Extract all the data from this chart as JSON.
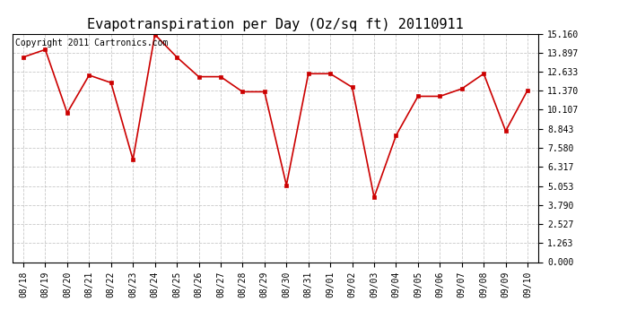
{
  "title": "Evapotranspiration per Day (Oz/sq ft) 20110911",
  "copyright_text": "Copyright 2011 Cartronics.com",
  "dates": [
    "08/18",
    "08/19",
    "08/20",
    "08/21",
    "08/22",
    "08/23",
    "08/24",
    "08/25",
    "08/26",
    "08/27",
    "08/28",
    "08/29",
    "08/30",
    "08/31",
    "09/01",
    "09/02",
    "09/03",
    "09/04",
    "09/05",
    "09/06",
    "09/07",
    "09/08",
    "09/09",
    "09/10"
  ],
  "values": [
    13.6,
    14.1,
    9.9,
    12.4,
    11.9,
    6.8,
    15.1,
    13.6,
    12.3,
    12.3,
    11.3,
    11.3,
    5.1,
    12.5,
    12.5,
    11.6,
    4.3,
    8.4,
    11.0,
    11.0,
    11.5,
    12.5,
    8.7,
    11.4
  ],
  "line_color": "#cc0000",
  "marker_color": "#cc0000",
  "bg_color": "#ffffff",
  "grid_color": "#bbbbbb",
  "ylim": [
    0.0,
    15.16
  ],
  "yticks": [
    0.0,
    1.263,
    2.527,
    3.79,
    5.053,
    6.317,
    7.58,
    8.843,
    10.107,
    11.37,
    12.633,
    13.897,
    15.16
  ],
  "title_fontsize": 11,
  "copyright_fontsize": 7,
  "tick_fontsize": 7,
  "figsize": [
    6.9,
    3.75
  ],
  "dpi": 100
}
